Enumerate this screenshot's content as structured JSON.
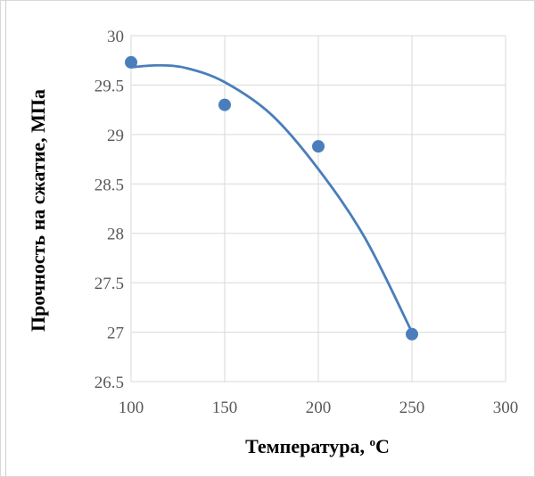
{
  "chart_data": {
    "type": "scatter",
    "xlabel": "Температура, ",
    "xlabel_sup": "o",
    "xlabel_tail": "C",
    "ylabel": "Прочность на сжатие, МПа",
    "xlim": [
      100,
      300
    ],
    "ylim": [
      26.5,
      30
    ],
    "x_ticks": [
      "100",
      "150",
      "200",
      "250",
      "300"
    ],
    "y_ticks": [
      "30",
      "29.5",
      "29",
      "28.5",
      "28",
      "27.5",
      "27",
      "26.5"
    ],
    "grid": true,
    "legend": "none",
    "series": [
      {
        "points": [
          {
            "x": 100,
            "y": 29.73
          },
          {
            "x": 150,
            "y": 29.3
          },
          {
            "x": 200,
            "y": 28.88
          },
          {
            "x": 250,
            "y": 26.98
          }
        ]
      }
    ],
    "trendline": {
      "type": "polynomial",
      "x_range": [
        100,
        250
      ],
      "samples": [
        {
          "x": 100,
          "y": 29.68
        },
        {
          "x": 115,
          "y": 29.7
        },
        {
          "x": 130,
          "y": 29.67
        },
        {
          "x": 150,
          "y": 29.53
        },
        {
          "x": 175,
          "y": 29.2
        },
        {
          "x": 200,
          "y": 28.65
        },
        {
          "x": 225,
          "y": 27.95
        },
        {
          "x": 250,
          "y": 27.0
        }
      ]
    },
    "colors": {
      "marker": "#4a7ebb",
      "line": "#4a7ebb",
      "grid": "#d9d9d9",
      "tick_text": "#595959"
    }
  }
}
